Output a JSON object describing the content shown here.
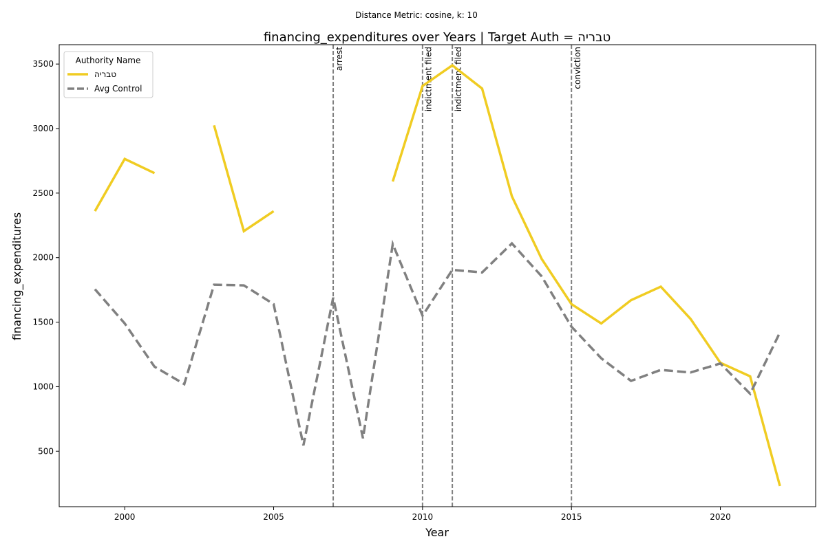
{
  "chart_data": {
    "type": "line",
    "suptitle": "Distance Metric: cosine, k: 10",
    "title": "financing_expenditures over Years | Target Auth = טבריה",
    "xlabel": "Year",
    "ylabel": "financing_expenditures",
    "xlim": [
      1997.8,
      2023.2
    ],
    "ylim": [
      70,
      3650
    ],
    "xticks": [
      2000,
      2005,
      2010,
      2015,
      2020
    ],
    "yticks": [
      500,
      1000,
      1500,
      2000,
      2500,
      3000,
      3500
    ],
    "grid": false,
    "legend": {
      "title": "Authority Name",
      "placement": "top-left"
    },
    "series": [
      {
        "name": "טבריה",
        "color": "#f0cc22",
        "style": "solid",
        "points": [
          [
            1999,
            2360
          ],
          [
            2000,
            2765
          ],
          [
            2001,
            2655
          ],
          [
            2002,
            null
          ],
          [
            2003,
            3025
          ],
          [
            2004,
            2205
          ],
          [
            2005,
            2360
          ],
          [
            2006,
            null
          ],
          [
            2007,
            null
          ],
          [
            2008,
            null
          ],
          [
            2009,
            2590
          ],
          [
            2010,
            3330
          ],
          [
            2011,
            3490
          ],
          [
            2012,
            3310
          ],
          [
            2013,
            2475
          ],
          [
            2014,
            1990
          ],
          [
            2015,
            1640
          ],
          [
            2016,
            1490
          ],
          [
            2017,
            1670
          ],
          [
            2018,
            1775
          ],
          [
            2019,
            1525
          ],
          [
            2020,
            1185
          ],
          [
            2021,
            1080
          ],
          [
            2022,
            230
          ]
        ]
      },
      {
        "name": "Avg Control",
        "color": "#808080",
        "style": "dashed",
        "points": [
          [
            1999,
            1755
          ],
          [
            2000,
            1490
          ],
          [
            2001,
            1155
          ],
          [
            2002,
            1020
          ],
          [
            2003,
            1790
          ],
          [
            2004,
            1785
          ],
          [
            2005,
            1640
          ],
          [
            2006,
            545
          ],
          [
            2007,
            1690
          ],
          [
            2008,
            600
          ],
          [
            2009,
            2105
          ],
          [
            2010,
            1550
          ],
          [
            2011,
            1905
          ],
          [
            2012,
            1885
          ],
          [
            2013,
            2110
          ],
          [
            2014,
            1855
          ],
          [
            2015,
            1465
          ],
          [
            2016,
            1220
          ],
          [
            2017,
            1045
          ],
          [
            2018,
            1130
          ],
          [
            2019,
            1110
          ],
          [
            2020,
            1180
          ],
          [
            2021,
            945
          ],
          [
            2022,
            1420
          ]
        ]
      }
    ],
    "events": [
      {
        "year": 2007,
        "label": "arrest"
      },
      {
        "year": 2010,
        "label": "indictment filed"
      },
      {
        "year": 2011,
        "label": "indictment filed"
      },
      {
        "year": 2015,
        "label": "conviction"
      }
    ]
  }
}
